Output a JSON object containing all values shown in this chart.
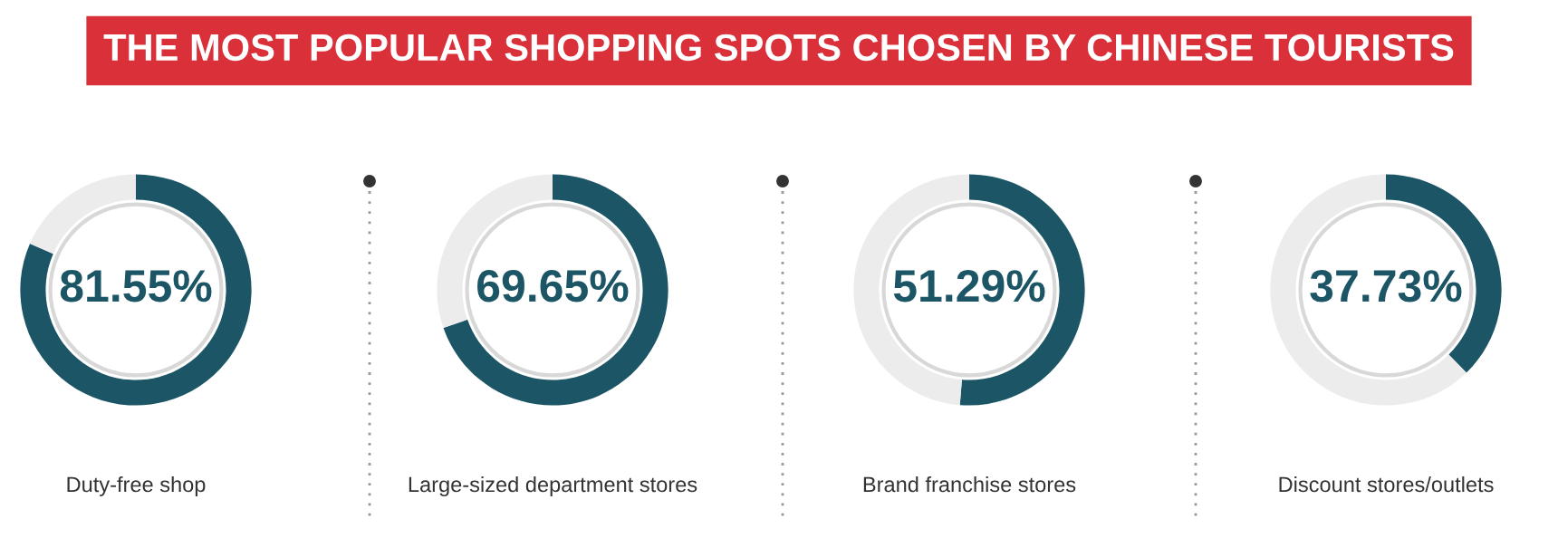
{
  "chart_data": [
    {
      "type": "donut",
      "title": "THE MOST POPULAR SHOPPING SPOTS CHOSEN BY CHINESE TOURISTS",
      "xlabel": "Duty-free shop",
      "categories": [
        null,
        null
      ],
      "values": [
        81.55,
        18.45
      ],
      "colors": [
        "#1c5566",
        "#ececec"
      ],
      "value_labels": [
        "81.55%",
        null
      ]
    },
    {
      "type": "donut",
      "xlabel": "Large-sized department stores",
      "categories": [
        null,
        null
      ],
      "values": [
        69.65,
        30.35
      ],
      "colors": [
        "#1c5566",
        "#ececec"
      ],
      "value_labels": [
        "69.65%",
        null
      ]
    },
    {
      "type": "donut",
      "xlabel": "Brand franchise stores",
      "categories": [
        null,
        null
      ],
      "values": [
        51.29,
        48.71
      ],
      "colors": [
        "#1c5566",
        "#ececec"
      ],
      "value_labels": [
        "51.29%",
        null
      ]
    },
    {
      "type": "donut",
      "xlabel": "Discount stores/outlets",
      "categories": [
        null,
        null
      ],
      "values": [
        37.73,
        62.27
      ],
      "colors": [
        "#1c5566",
        "#ececec"
      ],
      "value_labels": [
        "37.73%",
        null
      ]
    }
  ]
}
